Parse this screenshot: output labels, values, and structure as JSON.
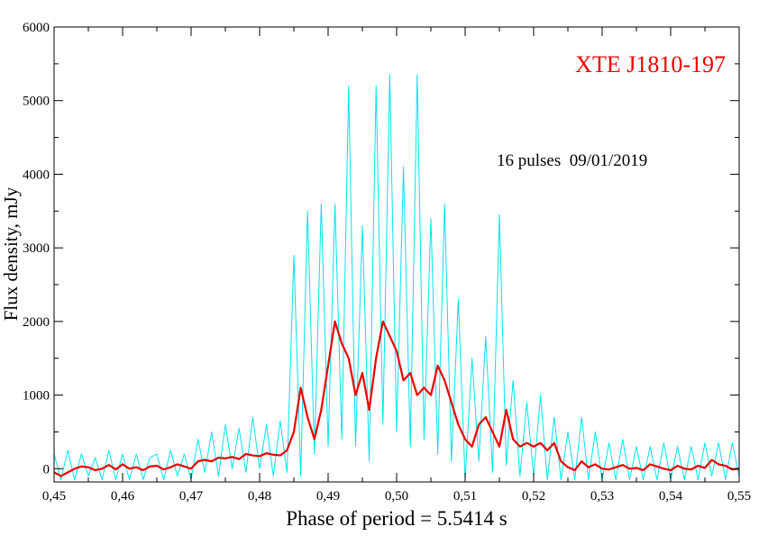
{
  "chart_data": {
    "type": "line",
    "title": "XTE J1810-197",
    "annotation": "16 pulses  09/01/2019",
    "xlabel": "Phase of period = 5.5414 s",
    "ylabel": "Flux density, mJy",
    "x": [
      0.45,
      0.451,
      0.452,
      0.453,
      0.454,
      0.455,
      0.456,
      0.457,
      0.458,
      0.459,
      0.46,
      0.461,
      0.462,
      0.463,
      0.464,
      0.465,
      0.466,
      0.467,
      0.468,
      0.469,
      0.47,
      0.471,
      0.472,
      0.473,
      0.474,
      0.475,
      0.476,
      0.477,
      0.478,
      0.479,
      0.48,
      0.481,
      0.482,
      0.483,
      0.484,
      0.485,
      0.486,
      0.487,
      0.488,
      0.489,
      0.49,
      0.491,
      0.492,
      0.493,
      0.494,
      0.495,
      0.496,
      0.497,
      0.498,
      0.499,
      0.5,
      0.501,
      0.502,
      0.503,
      0.504,
      0.505,
      0.506,
      0.507,
      0.508,
      0.509,
      0.51,
      0.511,
      0.512,
      0.513,
      0.514,
      0.515,
      0.516,
      0.517,
      0.518,
      0.519,
      0.52,
      0.521,
      0.522,
      0.523,
      0.524,
      0.525,
      0.526,
      0.527,
      0.528,
      0.529,
      0.53,
      0.531,
      0.532,
      0.533,
      0.534,
      0.535,
      0.536,
      0.537,
      0.538,
      0.539,
      0.54,
      0.541,
      0.542,
      0.543,
      0.544,
      0.545,
      0.546,
      0.547,
      0.548,
      0.549,
      0.55
    ],
    "series": [
      {
        "color": "#00e5ee",
        "values": [
          200,
          -150,
          250,
          -150,
          200,
          -100,
          150,
          -150,
          250,
          -150,
          200,
          -150,
          200,
          -150,
          150,
          200,
          -150,
          250,
          -100,
          200,
          -150,
          400,
          -50,
          500,
          -100,
          600,
          0,
          550,
          -50,
          700,
          0,
          600,
          -100,
          650,
          -50,
          2900,
          -100,
          3500,
          200,
          3600,
          300,
          3600,
          400,
          5200,
          300,
          3300,
          100,
          5200,
          600,
          5350,
          500,
          4100,
          300,
          5350,
          400,
          3400,
          200,
          3600,
          100,
          2300,
          -150,
          1500,
          100,
          1800,
          -50,
          3450,
          50,
          1200,
          -100,
          900,
          -100,
          1000,
          -150,
          700,
          -150,
          500,
          -150,
          700,
          -150,
          500,
          -150,
          350,
          -150,
          400,
          -150,
          300,
          -150,
          300,
          -150,
          350,
          -150,
          300,
          -150,
          300,
          -150,
          350,
          -100,
          350,
          -150,
          350,
          -100
        ]
      },
      {
        "color": "#ee0000",
        "values": [
          -50,
          -100,
          -50,
          0,
          30,
          20,
          -20,
          0,
          50,
          -10,
          60,
          0,
          20,
          -20,
          30,
          40,
          -10,
          20,
          60,
          30,
          0,
          100,
          120,
          100,
          150,
          140,
          160,
          130,
          200,
          180,
          170,
          210,
          190,
          180,
          250,
          500,
          1100,
          700,
          400,
          800,
          1400,
          2000,
          1700,
          1500,
          1000,
          1300,
          800,
          1500,
          2000,
          1800,
          1600,
          1200,
          1300,
          1000,
          1100,
          1000,
          1400,
          1200,
          900,
          600,
          400,
          300,
          600,
          700,
          500,
          300,
          800,
          400,
          300,
          350,
          300,
          350,
          250,
          350,
          100,
          20,
          -20,
          100,
          20,
          60,
          0,
          -10,
          20,
          50,
          0,
          10,
          -20,
          60,
          30,
          0,
          -20,
          40,
          0,
          -10,
          40,
          10,
          120,
          60,
          40,
          -10,
          0
        ]
      }
    ],
    "xlim": [
      0.45,
      0.55
    ],
    "xticks": [
      {
        "value": 0.45,
        "label": "0,45"
      },
      {
        "value": 0.46,
        "label": "0,46"
      },
      {
        "value": 0.47,
        "label": "0,47"
      },
      {
        "value": 0.48,
        "label": "0,48"
      },
      {
        "value": 0.49,
        "label": "0,49"
      },
      {
        "value": 0.5,
        "label": "0,50"
      },
      {
        "value": 0.51,
        "label": "0,51"
      },
      {
        "value": 0.52,
        "label": "0,52"
      },
      {
        "value": 0.53,
        "label": "0,53"
      },
      {
        "value": 0.54,
        "label": "0,54"
      },
      {
        "value": 0.55,
        "label": "0,55"
      }
    ],
    "ylim": [
      -180,
      6000
    ],
    "yticks": [
      0,
      1000,
      2000,
      3000,
      4000,
      5000,
      6000
    ]
  }
}
